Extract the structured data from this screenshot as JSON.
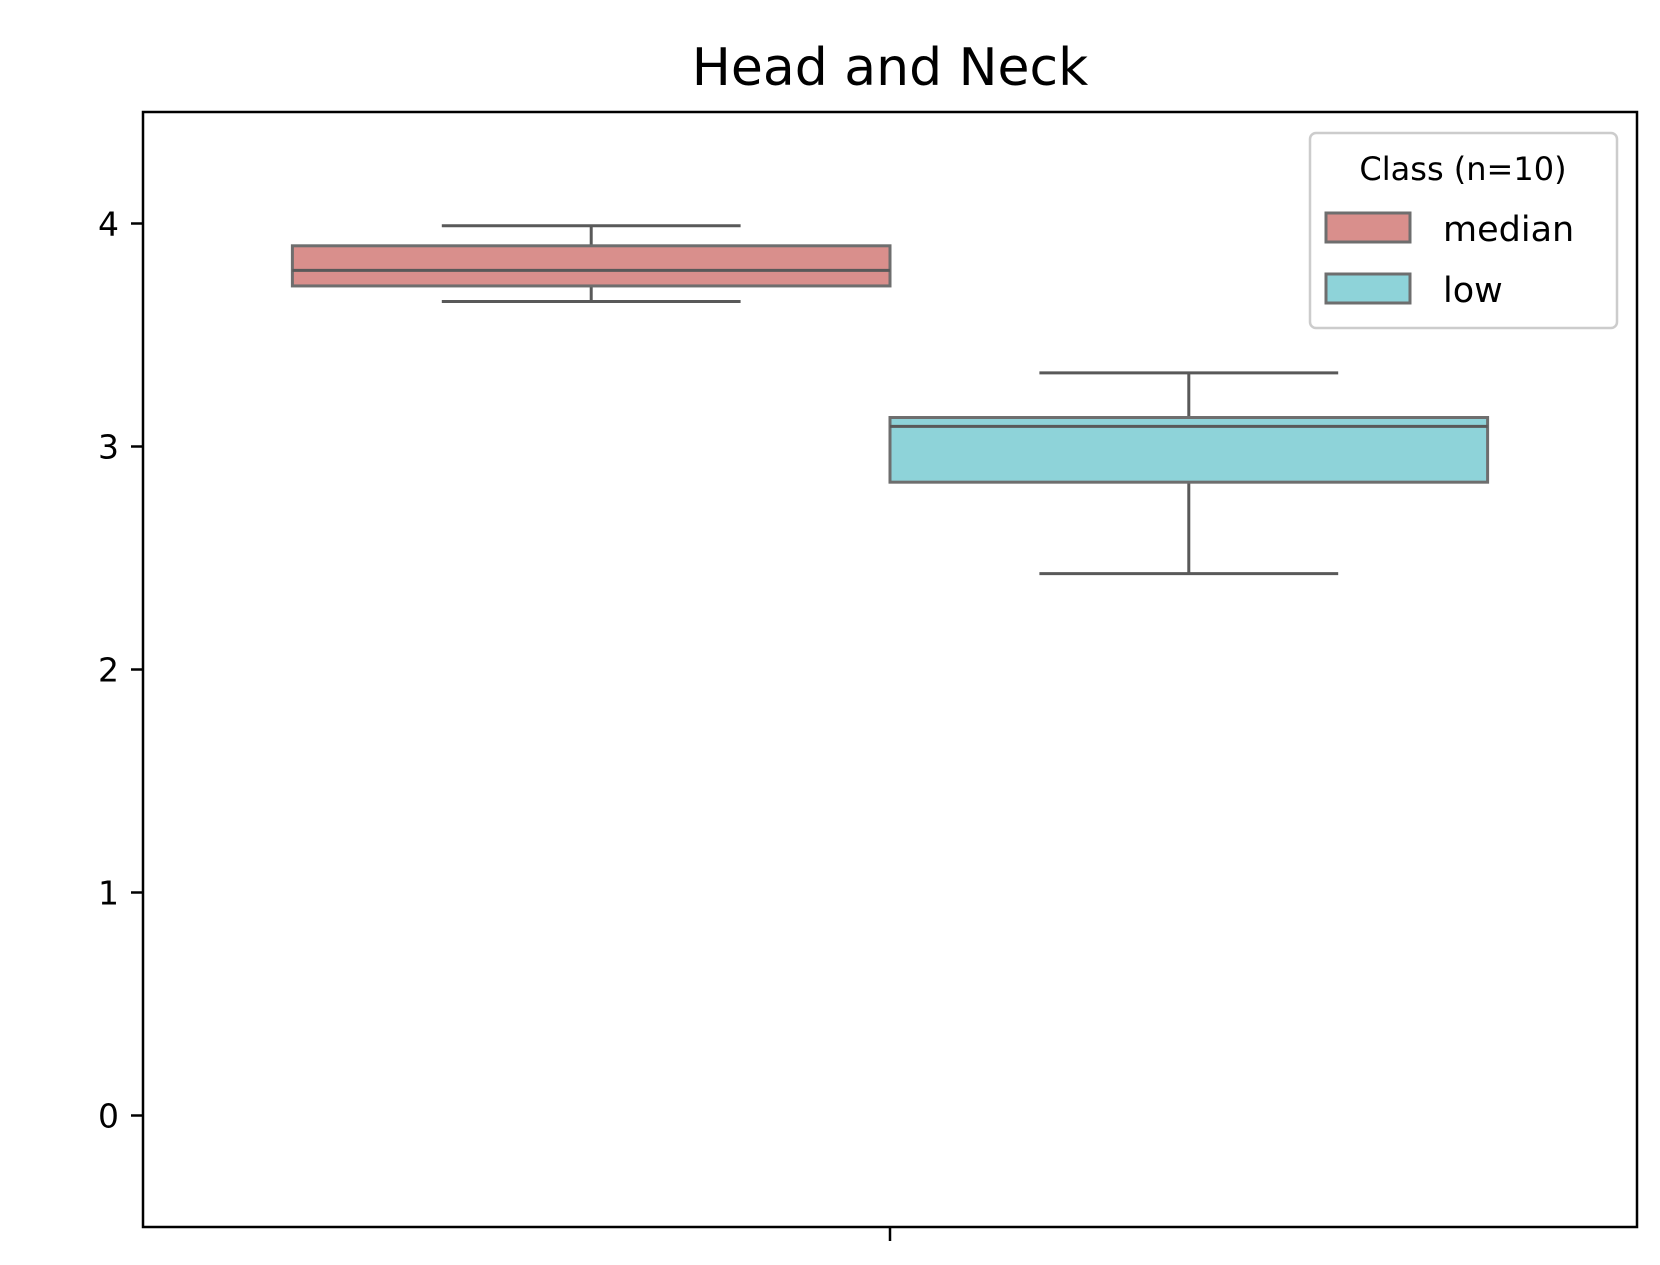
{
  "chart_data": {
    "type": "boxplot",
    "title": "Head and Neck",
    "xlabel": "",
    "ylabel": "",
    "ylim": [
      -0.5,
      4.5
    ],
    "yticks": [
      0,
      1,
      2,
      3,
      4
    ],
    "categories": [
      ""
    ],
    "grid": false,
    "legend": {
      "title": "Class (n=10)",
      "placement": "top-right"
    },
    "series": [
      {
        "name": "median",
        "color": "#d98f8c",
        "whisker_low": 3.65,
        "q1": 3.72,
        "median": 3.79,
        "q3": 3.9,
        "whisker_high": 3.99
      },
      {
        "name": "low",
        "color": "#8ed3d9",
        "whisker_low": 2.43,
        "q1": 2.84,
        "median": 3.09,
        "q3": 3.13,
        "whisker_high": 3.33
      }
    ]
  }
}
